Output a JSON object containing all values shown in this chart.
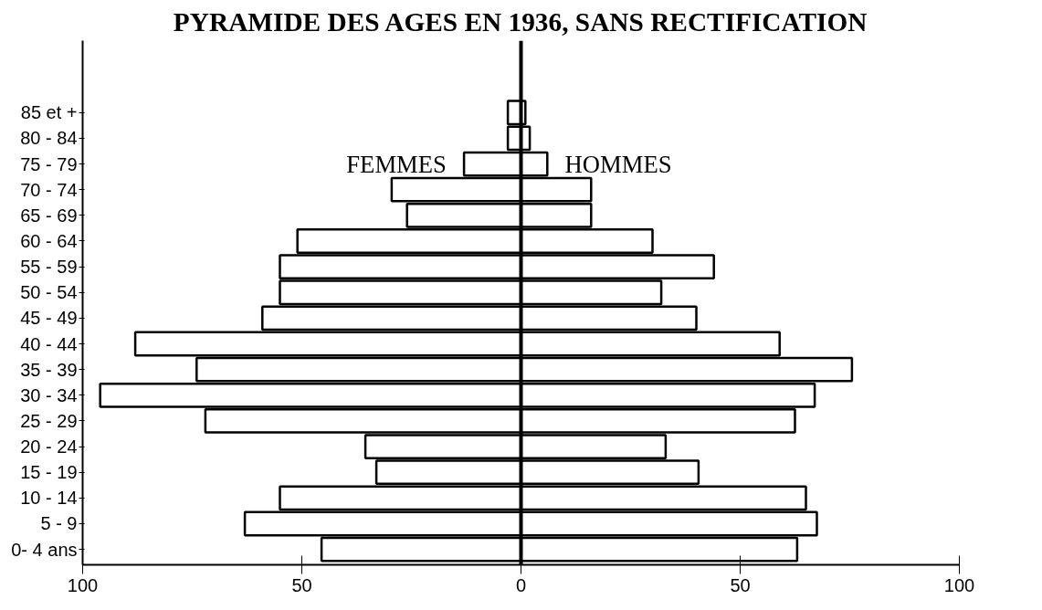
{
  "chart_data": {
    "type": "bar",
    "orientation": "horizontal",
    "title": "PYRAMIDE DES AGES EN 1936, SANS RECTIFICATION",
    "categories": [
      "85 et +",
      "80 - 84",
      "75 - 79",
      "70 - 74",
      "65 - 69",
      "60 - 64",
      "55 - 59",
      "50 - 54",
      "45 - 49",
      "40 - 44",
      "35 - 39",
      "30 - 34",
      "25 - 29",
      "20 - 24",
      "15 - 19",
      "10 - 14",
      "5 - 9",
      "0- 4 ans"
    ],
    "series": [
      {
        "name": "FEMMES",
        "color": "#ffffff",
        "values": [
          -3,
          -3,
          -13,
          -29.5,
          -26,
          -51,
          -55,
          -55,
          -59,
          -88,
          -74,
          -96,
          -72,
          -35.5,
          -33,
          -55,
          -63,
          -45.5
        ]
      },
      {
        "name": "HOMMES",
        "color": "#ffffff",
        "values": [
          1,
          2,
          6,
          16,
          16,
          30,
          44,
          32,
          40,
          59,
          75.5,
          67,
          62.5,
          33,
          40.5,
          65,
          67.5,
          63
        ]
      }
    ],
    "xlim": [
      -100,
      100
    ],
    "xticks": [
      {
        "value": -100,
        "label": "100"
      },
      {
        "value": -50,
        "label": "50"
      },
      0,
      50,
      100
    ],
    "ref_lines": [
      {
        "axis": "x",
        "value": 0,
        "label": null,
        "color": "#000000"
      }
    ],
    "stacked": true,
    "grid": false
  }
}
